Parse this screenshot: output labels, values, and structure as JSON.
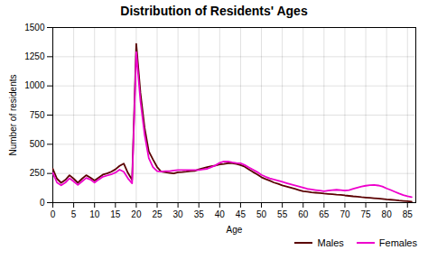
{
  "chart_data": {
    "type": "line",
    "title": "Distribution of Residents' Ages",
    "xlabel": "Age",
    "ylabel": "Number of residents",
    "xlim": [
      0,
      87
    ],
    "ylim": [
      0,
      1500
    ],
    "xticks": [
      0,
      5,
      10,
      15,
      20,
      25,
      30,
      35,
      40,
      45,
      50,
      55,
      60,
      65,
      70,
      75,
      80,
      85
    ],
    "yticks": [
      0,
      250,
      500,
      750,
      1000,
      1250,
      1500
    ],
    "grid": true,
    "legend": "lower right",
    "x": [
      0,
      1,
      2,
      3,
      4,
      5,
      6,
      7,
      8,
      9,
      10,
      11,
      12,
      13,
      14,
      15,
      16,
      17,
      18,
      19,
      20,
      21,
      22,
      23,
      24,
      25,
      26,
      27,
      28,
      29,
      30,
      31,
      32,
      33,
      34,
      35,
      36,
      37,
      38,
      39,
      40,
      41,
      42,
      43,
      44,
      45,
      46,
      47,
      48,
      49,
      50,
      51,
      52,
      53,
      54,
      55,
      56,
      57,
      58,
      59,
      60,
      61,
      62,
      63,
      64,
      65,
      66,
      67,
      68,
      69,
      70,
      71,
      72,
      73,
      74,
      75,
      76,
      77,
      78,
      79,
      80,
      81,
      82,
      83,
      84,
      85,
      86
    ],
    "series": [
      {
        "name": "Males",
        "color": "#5a0000",
        "values": [
          290,
          205,
          170,
          195,
          235,
          205,
          170,
          205,
          235,
          215,
          190,
          215,
          240,
          250,
          265,
          285,
          315,
          335,
          255,
          195,
          1360,
          940,
          640,
          440,
          370,
          305,
          265,
          260,
          255,
          250,
          260,
          262,
          265,
          270,
          272,
          285,
          295,
          305,
          312,
          318,
          328,
          332,
          338,
          338,
          332,
          322,
          308,
          285,
          262,
          242,
          218,
          202,
          188,
          172,
          162,
          148,
          138,
          128,
          118,
          108,
          98,
          93,
          88,
          85,
          82,
          78,
          75,
          72,
          69,
          67,
          62,
          58,
          54,
          51,
          47,
          44,
          41,
          38,
          35,
          32,
          28,
          25,
          22,
          18,
          15,
          12,
          9
        ]
      },
      {
        "name": "Females",
        "color": "#ee00cc",
        "values": [
          255,
          172,
          148,
          172,
          208,
          182,
          152,
          182,
          212,
          198,
          172,
          198,
          222,
          232,
          242,
          258,
          282,
          265,
          208,
          165,
          1290,
          870,
          582,
          382,
          305,
          270,
          265,
          270,
          270,
          275,
          280,
          280,
          280,
          280,
          280,
          280,
          285,
          290,
          305,
          320,
          342,
          352,
          352,
          345,
          340,
          338,
          322,
          302,
          282,
          262,
          238,
          222,
          208,
          198,
          188,
          178,
          168,
          158,
          148,
          138,
          128,
          118,
          113,
          108,
          103,
          98,
          103,
          108,
          110,
          108,
          103,
          108,
          118,
          128,
          138,
          145,
          150,
          152,
          147,
          138,
          122,
          108,
          93,
          78,
          65,
          55,
          48
        ]
      }
    ]
  }
}
